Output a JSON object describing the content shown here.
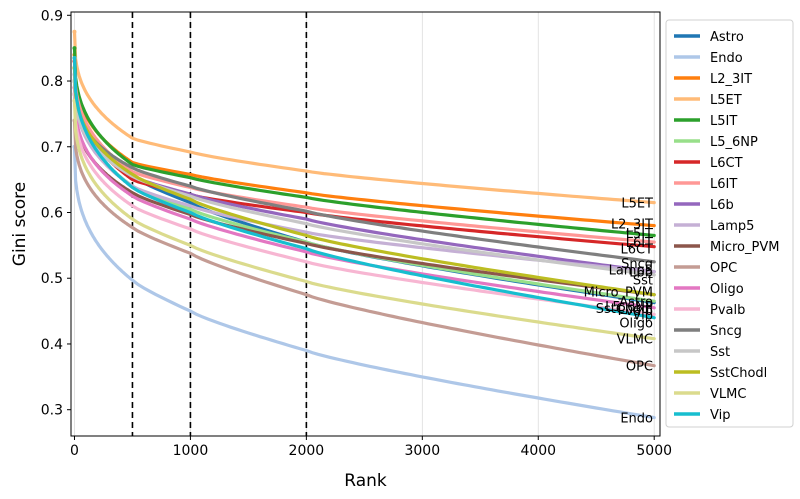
{
  "chart_data": {
    "type": "line",
    "title": "",
    "xlabel": "Rank",
    "ylabel": "Gini score",
    "xlim": [
      -30,
      5050
    ],
    "ylim": [
      0.26,
      0.905
    ],
    "xticks": [
      0,
      1000,
      2000,
      3000,
      4000,
      5000
    ],
    "yticks": [
      0.3,
      0.4,
      0.5,
      0.6,
      0.7,
      0.8,
      0.9
    ],
    "grid": "vertical",
    "legend": "right-outside",
    "vlines": [
      500,
      1000,
      2000
    ],
    "series": [
      {
        "name": "Astro",
        "color": "#1f77b4",
        "start": 0.8,
        "y500": 0.655,
        "y1000": 0.615,
        "y2000": 0.555,
        "y5000": 0.463
      },
      {
        "name": "Endo",
        "color": "#aec7e8",
        "start": 0.7,
        "y500": 0.497,
        "y1000": 0.45,
        "y2000": 0.39,
        "y5000": 0.288
      },
      {
        "name": "L2_3IT",
        "color": "#ff7f0e",
        "start": 0.84,
        "y500": 0.676,
        "y1000": 0.658,
        "y2000": 0.63,
        "y5000": 0.58
      },
      {
        "name": "L5ET",
        "color": "#ffbb78",
        "start": 0.875,
        "y500": 0.713,
        "y1000": 0.692,
        "y2000": 0.663,
        "y5000": 0.615
      },
      {
        "name": "L5IT",
        "color": "#2ca02c",
        "start": 0.85,
        "y500": 0.673,
        "y1000": 0.653,
        "y2000": 0.623,
        "y5000": 0.565
      },
      {
        "name": "L5_6NP",
        "color": "#98df8a",
        "start": 0.82,
        "y500": 0.64,
        "y1000": 0.605,
        "y2000": 0.555,
        "y5000": 0.465
      },
      {
        "name": "L6CT",
        "color": "#d62728",
        "start": 0.83,
        "y500": 0.65,
        "y1000": 0.627,
        "y2000": 0.6,
        "y5000": 0.548
      },
      {
        "name": "L6IT",
        "color": "#ff9896",
        "start": 0.835,
        "y500": 0.662,
        "y1000": 0.638,
        "y2000": 0.608,
        "y5000": 0.555
      },
      {
        "name": "L6b",
        "color": "#9467bd",
        "start": 0.82,
        "y500": 0.655,
        "y1000": 0.628,
        "y2000": 0.59,
        "y5000": 0.51
      },
      {
        "name": "Lamp5",
        "color": "#c5b0d5",
        "start": 0.81,
        "y500": 0.64,
        "y1000": 0.61,
        "y2000": 0.57,
        "y5000": 0.51
      },
      {
        "name": "Micro_PVM",
        "color": "#8c564b",
        "start": 0.78,
        "y500": 0.63,
        "y1000": 0.597,
        "y2000": 0.553,
        "y5000": 0.475
      },
      {
        "name": "OPC",
        "color": "#c49c94",
        "start": 0.74,
        "y500": 0.577,
        "y1000": 0.538,
        "y2000": 0.475,
        "y5000": 0.367
      },
      {
        "name": "Oligo",
        "color": "#e377c2",
        "start": 0.79,
        "y500": 0.625,
        "y1000": 0.59,
        "y2000": 0.54,
        "y5000": 0.455
      },
      {
        "name": "Pvalb",
        "color": "#f7b6d2",
        "start": 0.78,
        "y500": 0.61,
        "y1000": 0.575,
        "y2000": 0.525,
        "y5000": 0.445
      },
      {
        "name": "Sncg",
        "color": "#7f7f7f",
        "start": 0.8,
        "y500": 0.668,
        "y1000": 0.64,
        "y2000": 0.602,
        "y5000": 0.525
      },
      {
        "name": "Sst",
        "color": "#c7c7c7",
        "start": 0.8,
        "y500": 0.655,
        "y1000": 0.625,
        "y2000": 0.583,
        "y5000": 0.505
      },
      {
        "name": "SstChodl",
        "color": "#bcbd22",
        "start": 0.82,
        "y500": 0.658,
        "y1000": 0.62,
        "y2000": 0.565,
        "y5000": 0.475
      },
      {
        "name": "VLMC",
        "color": "#dbdb8d",
        "start": 0.77,
        "y500": 0.59,
        "y1000": 0.55,
        "y2000": 0.495,
        "y5000": 0.408
      },
      {
        "name": "Vip",
        "color": "#17becf",
        "start": 0.835,
        "y500": 0.638,
        "y1000": 0.6,
        "y2000": 0.545,
        "y5000": 0.44
      }
    ],
    "end_labels": [
      {
        "text": "L5ET",
        "series": "L5ET",
        "y": 0.615
      },
      {
        "text": "L2_3IT",
        "series": "L2_3IT",
        "y": 0.583
      },
      {
        "text": "L5IT",
        "series": "L5IT",
        "y": 0.569
      },
      {
        "text": "L6IT",
        "series": "L6IT",
        "y": 0.555
      },
      {
        "text": "L6CT",
        "series": "L6CT",
        "y": 0.545
      },
      {
        "text": "Sncg",
        "series": "Sncg",
        "y": 0.523
      },
      {
        "text": "Lamp5",
        "series": "Lamp5",
        "y": 0.513
      },
      {
        "text": "L6b",
        "series": "L6b",
        "y": 0.51
      },
      {
        "text": "Sst",
        "series": "Sst",
        "y": 0.498
      },
      {
        "text": "Micro_PVM",
        "series": "Micro_PVM",
        "y": 0.48
      },
      {
        "text": "Astro",
        "series": "Astro",
        "y": 0.465
      },
      {
        "text": "L5_6NP",
        "series": "L5_6NP",
        "y": 0.458
      },
      {
        "text": "SstChodl",
        "series": "SstChodl",
        "y": 0.455
      },
      {
        "text": "Pvalb",
        "series": "Pvalb",
        "y": 0.452
      },
      {
        "text": "Vip",
        "series": "Vip",
        "y": 0.445
      },
      {
        "text": "Oligo",
        "series": "Oligo",
        "y": 0.433
      },
      {
        "text": "VLMC",
        "series": "VLMC",
        "y": 0.408
      },
      {
        "text": "OPC",
        "series": "OPC",
        "y": 0.367
      },
      {
        "text": "Endo",
        "series": "Endo",
        "y": 0.288
      }
    ]
  }
}
